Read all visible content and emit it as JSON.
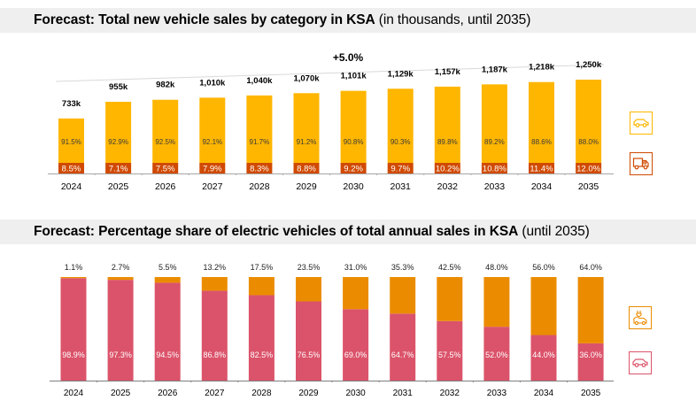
{
  "colors": {
    "ice_sales": "#FFB600",
    "commercial": "#D04A02",
    "ev": "#EB8C00",
    "ice_share": "#DB536A",
    "banner_bg": "#EFEFEF",
    "axis": "#7F7F7F",
    "cagr_arrow": "#D9D9D9"
  },
  "chart_data": [
    {
      "type": "bar",
      "stacked": true,
      "title": "Forecast: Total new vehicle sales by category in KSA",
      "subtitle": "(in thousands, until 2035)",
      "xlabel": "",
      "ylabel": "",
      "categories": [
        "2024",
        "2025",
        "2026",
        "2027",
        "2028",
        "2029",
        "2030",
        "2031",
        "2032",
        "2033",
        "2034",
        "2035"
      ],
      "totals": [
        733,
        955,
        982,
        1010,
        1040,
        1070,
        1101,
        1129,
        1157,
        1187,
        1218,
        1250
      ],
      "total_labels": [
        "733k",
        "955k",
        "982k",
        "1,010k",
        "1,040k",
        "1,070k",
        "1,101k",
        "1,129k",
        "1,157k",
        "1,187k",
        "1,218k",
        "1,250k"
      ],
      "series": [
        {
          "name": "Commercial vehicles",
          "icon": "truck-icon",
          "values": [
            8.5,
            7.1,
            7.5,
            7.9,
            8.3,
            8.8,
            9.2,
            9.7,
            10.2,
            10.8,
            11.4,
            12.0
          ],
          "labels": [
            "8.5%",
            "7.1%",
            "7.5%",
            "7.9%",
            "8.3%",
            "8.8%",
            "9.2%",
            "9.7%",
            "10.2%",
            "10.8%",
            "11.4%",
            "12.0%"
          ]
        },
        {
          "name": "Passenger cars",
          "icon": "car-icon",
          "values": [
            91.5,
            92.9,
            92.5,
            92.1,
            91.7,
            91.2,
            90.8,
            90.3,
            89.8,
            89.2,
            88.6,
            88.0
          ],
          "labels": [
            "91.5%",
            "92.9%",
            "92.5%",
            "92.1%",
            "91.7%",
            "91.2%",
            "90.8%",
            "90.3%",
            "89.8%",
            "89.2%",
            "88.6%",
            "88.0%"
          ]
        }
      ],
      "annotation": "+5.0%",
      "ylim": [
        0,
        1250
      ],
      "grid": false,
      "legend": "right (icons)"
    },
    {
      "type": "bar",
      "stacked": true,
      "title": "Forecast: Percentage share of electric vehicles of total annual sales in KSA",
      "subtitle": "(until 2035)",
      "xlabel": "",
      "ylabel": "",
      "categories": [
        "2024",
        "2025",
        "2026",
        "2027",
        "2028",
        "2029",
        "2030",
        "2031",
        "2032",
        "2033",
        "2034",
        "2035"
      ],
      "series": [
        {
          "name": "Internal combustion vehicles",
          "icon": "car-icon",
          "values": [
            98.9,
            97.3,
            94.5,
            86.8,
            82.5,
            76.5,
            69.0,
            64.7,
            57.5,
            52.0,
            44.0,
            36.0
          ],
          "labels": [
            "98.9%",
            "97.3%",
            "94.5%",
            "86.8%",
            "82.5%",
            "76.5%",
            "69.0%",
            "64.7%",
            "57.5%",
            "52.0%",
            "44.0%",
            "36.0%"
          ]
        },
        {
          "name": "Electric vehicles",
          "icon": "ev-plug-car-icon",
          "values": [
            1.1,
            2.7,
            5.5,
            13.2,
            17.5,
            23.5,
            31.0,
            35.3,
            42.5,
            48.0,
            56.0,
            64.0
          ],
          "labels": [
            "1.1%",
            "2.7%",
            "5.5%",
            "13.2%",
            "17.5%",
            "23.5%",
            "31.0%",
            "35.3%",
            "42.5%",
            "48.0%",
            "56.0%",
            "64.0%"
          ]
        }
      ],
      "ylim": [
        0,
        100
      ],
      "grid": false,
      "legend": "right (icons)"
    }
  ],
  "banners": {
    "top_bold": "Forecast: Total new vehicle sales by category in KSA",
    "top_sub": " (in thousands, until 2035)",
    "bottom_bold": "Forecast: Percentage share of electric vehicles of total annual sales in KSA",
    "bottom_sub": " (until 2035)"
  }
}
